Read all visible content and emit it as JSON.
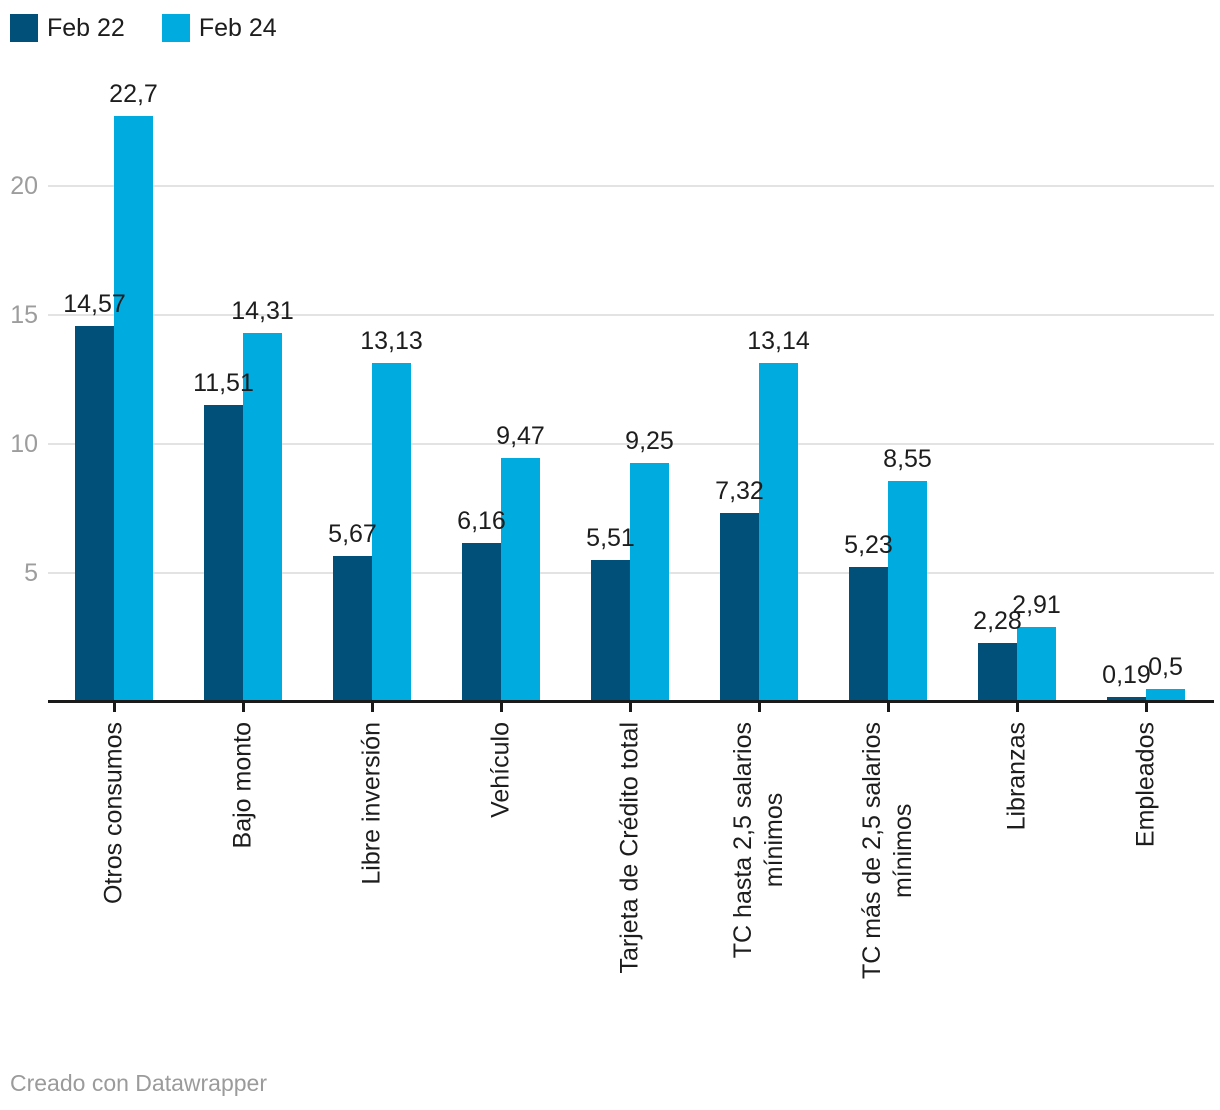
{
  "legend": {
    "items": [
      {
        "label": "Feb 22",
        "color": "#00507a"
      },
      {
        "label": "Feb 24",
        "color": "#00acdf"
      }
    ]
  },
  "chart_data": {
    "type": "bar",
    "title": "",
    "xlabel": "",
    "ylabel": "",
    "categories": [
      "Otros consumos",
      "Bajo monto",
      "Libre inversión",
      "Vehículo",
      "Tarjeta de Crédito total",
      "TC hasta 2,5 salarios\nmínimos",
      "TC más de 2,5 salarios\nmínimos",
      "Libranzas",
      "Empleados"
    ],
    "series": [
      {
        "name": "Feb 22",
        "color": "#00507a",
        "values": [
          14.57,
          11.51,
          5.67,
          6.16,
          5.51,
          7.32,
          5.23,
          2.28,
          0.19
        ],
        "labels": [
          "14,57",
          "11,51",
          "5,67",
          "6,16",
          "5,51",
          "7,32",
          "5,23",
          "2,28",
          "0,19"
        ]
      },
      {
        "name": "Feb 24",
        "color": "#00acdf",
        "values": [
          22.7,
          14.31,
          13.13,
          9.47,
          9.25,
          13.14,
          8.55,
          2.91,
          0.5
        ],
        "labels": [
          "22,7",
          "14,31",
          "13,13",
          "9,47",
          "9,25",
          "13,14",
          "8,55",
          "2,91",
          "0,5"
        ]
      }
    ],
    "yticks": [
      5,
      10,
      15,
      20
    ],
    "ylim": [
      0,
      24
    ],
    "grid": "horizontal",
    "legend_position": "top-left",
    "value_labels_shown": true,
    "colors": {
      "gridline": "#e3e3e3",
      "axis": "#1a1a1a",
      "tick_label": "#9d9d9d",
      "value_label": "#1d1d1d"
    }
  },
  "footer": {
    "credit": "Creado con Datawrapper"
  }
}
